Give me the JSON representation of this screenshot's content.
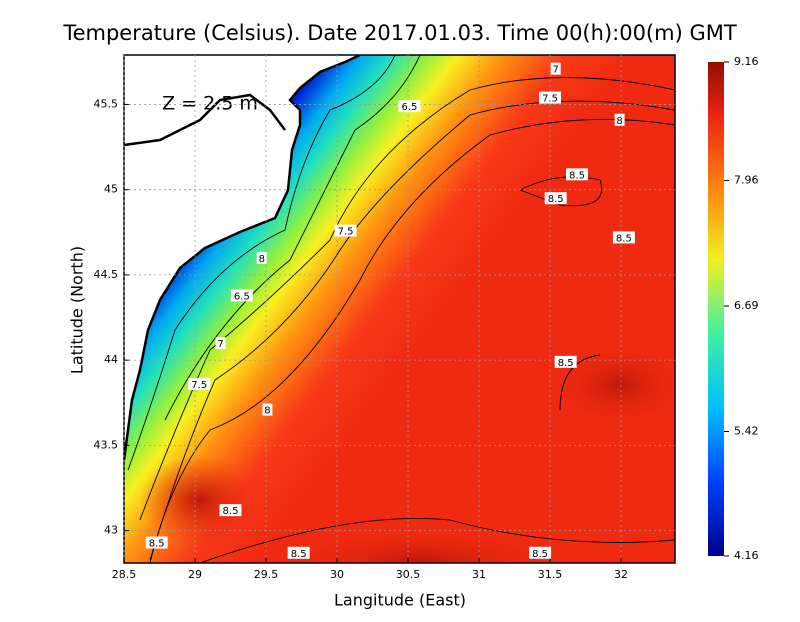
{
  "chart_data": {
    "type": "contour",
    "title": "Temperature (Celsius). Date 2017.01.03. Time 00(h):00(m) GMT",
    "annotation": "Z = 2.5 m",
    "x_label": "Langitude (East)",
    "y_label": "Latitude (North)",
    "xlim": [
      28.5,
      32.38
    ],
    "ylim": [
      42.81,
      45.79
    ],
    "xticks": [
      28.5,
      29,
      29.5,
      30,
      30.5,
      31,
      31.5,
      32
    ],
    "yticks": [
      43,
      43.5,
      44,
      44.5,
      45,
      45.5
    ],
    "grid": true,
    "colorbar": {
      "lim": [
        4.16,
        9.16
      ],
      "ticks": [
        4.16,
        5.42,
        6.69,
        7.96,
        9.16
      ]
    },
    "contour_labels": {
      "lon": [
        31.54,
        31.5,
        30.51,
        31.99,
        31.69,
        31.54,
        32.02,
        30.06,
        29.47,
        29.33,
        29.18,
        29.03,
        29.51,
        31.61,
        29.25,
        28.73,
        29.73,
        31.43
      ],
      "lat": [
        45.71,
        45.54,
        45.49,
        45.41,
        45.09,
        44.95,
        44.72,
        44.76,
        44.6,
        44.38,
        44.1,
        43.86,
        43.71,
        43.99,
        43.12,
        42.93,
        42.87,
        42.87
      ],
      "values": [
        7,
        7.5,
        6.5,
        8,
        8.5,
        8.5,
        8.5,
        7.5,
        8,
        6.5,
        7,
        7.5,
        8,
        8.5,
        8.5,
        8.5,
        8.5,
        8.5
      ]
    }
  }
}
